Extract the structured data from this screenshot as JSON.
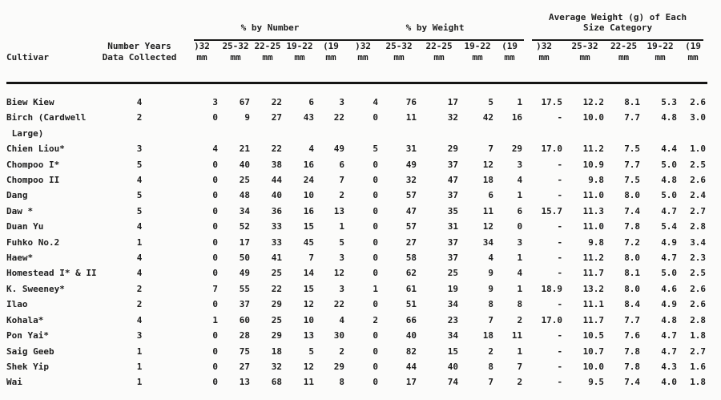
{
  "table": {
    "groups": [
      {
        "label": "% by Number"
      },
      {
        "label": "% by Weight"
      },
      {
        "label_line1": "Average Weight (g) of Each",
        "label_line2": "Size Category"
      }
    ],
    "col_headers": {
      "cultivar": "Cultivar",
      "years_line1": "Number Years",
      "years_line2": "Data Collected",
      "unit": "mm"
    },
    "size_categories": [
      ")32",
      "25-32",
      "22-25",
      "19-22",
      "(19"
    ],
    "rows": [
      {
        "cultivar": "Biew Kiew",
        "years": "4",
        "pct_number": [
          "3",
          "67",
          "22",
          "6",
          "3"
        ],
        "pct_weight": [
          "4",
          "76",
          "17",
          "5",
          "1"
        ],
        "avg_weight": [
          "17.5",
          "12.2",
          "8.1",
          "5.3",
          "2.6"
        ]
      },
      {
        "cultivar": "Birch (Cardwell",
        "cultivar_line2": "Large)",
        "years": "2",
        "pct_number": [
          "0",
          "9",
          "27",
          "43",
          "22"
        ],
        "pct_weight": [
          "0",
          "11",
          "32",
          "42",
          "16"
        ],
        "avg_weight": [
          "-",
          "10.0",
          "7.7",
          "4.8",
          "3.0"
        ]
      },
      {
        "cultivar": "Chien Liou*",
        "years": "3",
        "pct_number": [
          "4",
          "21",
          "22",
          "4",
          "49"
        ],
        "pct_weight": [
          "5",
          "31",
          "29",
          "7",
          "29"
        ],
        "avg_weight": [
          "17.0",
          "11.2",
          "7.5",
          "4.4",
          "1.0"
        ]
      },
      {
        "cultivar": "Chompoo I*",
        "years": "5",
        "pct_number": [
          "0",
          "40",
          "38",
          "16",
          "6"
        ],
        "pct_weight": [
          "0",
          "49",
          "37",
          "12",
          "3"
        ],
        "avg_weight": [
          "-",
          "10.9",
          "7.7",
          "5.0",
          "2.5"
        ]
      },
      {
        "cultivar": "Chompoo II",
        "years": "4",
        "pct_number": [
          "0",
          "25",
          "44",
          "24",
          "7"
        ],
        "pct_weight": [
          "0",
          "32",
          "47",
          "18",
          "4"
        ],
        "avg_weight": [
          "-",
          "9.8",
          "7.5",
          "4.8",
          "2.6"
        ]
      },
      {
        "cultivar": "Dang",
        "years": "5",
        "pct_number": [
          "0",
          "48",
          "40",
          "10",
          "2"
        ],
        "pct_weight": [
          "0",
          "57",
          "37",
          "6",
          "1"
        ],
        "avg_weight": [
          "-",
          "11.0",
          "8.0",
          "5.0",
          "2.4"
        ]
      },
      {
        "cultivar": "Daw *",
        "years": "5",
        "pct_number": [
          "0",
          "34",
          "36",
          "16",
          "13"
        ],
        "pct_weight": [
          "0",
          "47",
          "35",
          "11",
          "6"
        ],
        "avg_weight": [
          "15.7",
          "11.3",
          "7.4",
          "4.7",
          "2.7"
        ]
      },
      {
        "cultivar": "Duan Yu",
        "years": "4",
        "pct_number": [
          "0",
          "52",
          "33",
          "15",
          "1"
        ],
        "pct_weight": [
          "0",
          "57",
          "31",
          "12",
          "0"
        ],
        "avg_weight": [
          "-",
          "11.0",
          "7.8",
          "5.4",
          "2.8"
        ]
      },
      {
        "cultivar": "Fuhko No.2",
        "years": "1",
        "pct_number": [
          "0",
          "17",
          "33",
          "45",
          "5"
        ],
        "pct_weight": [
          "0",
          "27",
          "37",
          "34",
          "3"
        ],
        "avg_weight": [
          "-",
          "9.8",
          "7.2",
          "4.9",
          "3.4"
        ]
      },
      {
        "cultivar": "Haew*",
        "years": "4",
        "pct_number": [
          "0",
          "50",
          "41",
          "7",
          "3"
        ],
        "pct_weight": [
          "0",
          "58",
          "37",
          "4",
          "1"
        ],
        "avg_weight": [
          "-",
          "11.2",
          "8.0",
          "4.7",
          "2.3"
        ]
      },
      {
        "cultivar": "Homestead I* & II",
        "years": "4",
        "pct_number": [
          "0",
          "49",
          "25",
          "14",
          "12"
        ],
        "pct_weight": [
          "0",
          "62",
          "25",
          "9",
          "4"
        ],
        "avg_weight": [
          "-",
          "11.7",
          "8.1",
          "5.0",
          "2.5"
        ]
      },
      {
        "cultivar": "K. Sweeney*",
        "years": "2",
        "pct_number": [
          "7",
          "55",
          "22",
          "15",
          "3"
        ],
        "pct_weight": [
          "1",
          "61",
          "19",
          "9",
          "1"
        ],
        "avg_weight": [
          "18.9",
          "13.2",
          "8.0",
          "4.6",
          "2.6"
        ]
      },
      {
        "cultivar": "Ilao",
        "years": "2",
        "pct_number": [
          "0",
          "37",
          "29",
          "12",
          "22"
        ],
        "pct_weight": [
          "0",
          "51",
          "34",
          "8",
          "8"
        ],
        "avg_weight": [
          "-",
          "11.1",
          "8.4",
          "4.9",
          "2.6"
        ]
      },
      {
        "cultivar": "Kohala*",
        "years": "4",
        "pct_number": [
          "1",
          "60",
          "25",
          "10",
          "4"
        ],
        "pct_weight": [
          "2",
          "66",
          "23",
          "7",
          "2"
        ],
        "avg_weight": [
          "17.0",
          "11.7",
          "7.7",
          "4.8",
          "2.8"
        ]
      },
      {
        "cultivar": "Pon Yai*",
        "years": "3",
        "pct_number": [
          "0",
          "28",
          "29",
          "13",
          "30"
        ],
        "pct_weight": [
          "0",
          "40",
          "34",
          "18",
          "11"
        ],
        "avg_weight": [
          "-",
          "10.5",
          "7.6",
          "4.7",
          "1.8"
        ]
      },
      {
        "cultivar": "Saig Geeb",
        "years": "1",
        "pct_number": [
          "0",
          "75",
          "18",
          "5",
          "2"
        ],
        "pct_weight": [
          "0",
          "82",
          "15",
          "2",
          "1"
        ],
        "avg_weight": [
          "-",
          "10.7",
          "7.8",
          "4.7",
          "2.7"
        ]
      },
      {
        "cultivar": "Shek Yip",
        "years": "1",
        "pct_number": [
          "0",
          "27",
          "32",
          "12",
          "29"
        ],
        "pct_weight": [
          "0",
          "44",
          "40",
          "8",
          "7"
        ],
        "avg_weight": [
          "-",
          "10.0",
          "7.8",
          "4.3",
          "1.6"
        ]
      },
      {
        "cultivar": "Wai",
        "years": "1",
        "pct_number": [
          "0",
          "13",
          "68",
          "11",
          "8"
        ],
        "pct_weight": [
          "0",
          "17",
          "74",
          "7",
          "2"
        ],
        "avg_weight": [
          "-",
          "9.5",
          "7.4",
          "4.0",
          "1.8"
        ]
      }
    ]
  },
  "colors": {
    "ink": "#1d1d1d",
    "paper": "#fbfbfa"
  }
}
